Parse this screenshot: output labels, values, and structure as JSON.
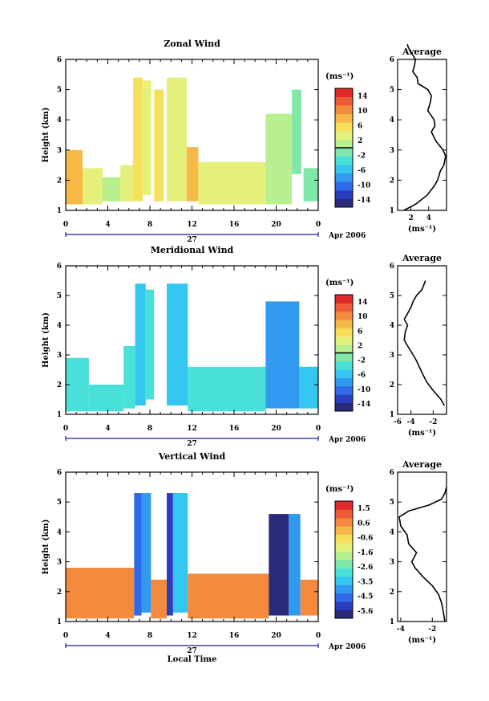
{
  "figure": {
    "xlabel": "Local Time",
    "ylabel": "Height (km)",
    "date_label": "27",
    "month_label": "Apr 2006",
    "avg_title": "Average",
    "unit_label": "(ms⁻¹)",
    "avg_xlabel": "(ms⁻¹)"
  },
  "chart_data": [
    {
      "id": "zonal",
      "type": "heatmap",
      "title": "Zonal Wind",
      "xlabel": "",
      "ylabel": "Height (km)",
      "x_ticks": [
        "0",
        "4",
        "8",
        "12",
        "16",
        "20",
        "0"
      ],
      "xlim": [
        0,
        24
      ],
      "ylim": [
        1,
        6
      ],
      "y_ticks": [
        "1",
        "2",
        "3",
        "4",
        "5",
        "6"
      ],
      "colorbar": {
        "labels": [
          "14",
          "10",
          "6",
          "2",
          "-2",
          "-6",
          "-10",
          "-14"
        ],
        "range": [
          -14,
          14
        ],
        "zero_line": 0
      },
      "data_columns": [
        {
          "t0": 0.0,
          "t1": 1.6,
          "h0": 1.2,
          "h1": 3.0,
          "value": 7
        },
        {
          "t0": 1.6,
          "t1": 3.5,
          "h0": 1.2,
          "h1": 2.4,
          "value": 3
        },
        {
          "t0": 3.5,
          "t1": 5.8,
          "h0": 1.3,
          "h1": 2.1,
          "value": 1
        },
        {
          "t0": 5.2,
          "t1": 6.4,
          "h0": 1.3,
          "h1": 2.5,
          "value": 2
        },
        {
          "t0": 6.4,
          "t1": 7.3,
          "h0": 1.3,
          "h1": 5.4,
          "value": 4
        },
        {
          "t0": 7.3,
          "t1": 8.1,
          "h0": 1.5,
          "h1": 5.3,
          "value": 3
        },
        {
          "t0": 8.4,
          "t1": 9.3,
          "h0": 1.3,
          "h1": 5.0,
          "value": 5
        },
        {
          "t0": 9.6,
          "t1": 11.5,
          "h0": 1.3,
          "h1": 5.4,
          "value": 3
        },
        {
          "t0": 11.5,
          "t1": 12.6,
          "h0": 1.3,
          "h1": 3.1,
          "value": 6
        },
        {
          "t0": 12.6,
          "t1": 19.0,
          "h0": 1.2,
          "h1": 2.6,
          "value": 3
        },
        {
          "t0": 19.0,
          "t1": 21.5,
          "h0": 1.2,
          "h1": 4.2,
          "value": 0
        },
        {
          "t0": 21.5,
          "t1": 22.4,
          "h0": 2.2,
          "h1": 5.0,
          "value": -1
        },
        {
          "t0": 22.6,
          "t1": 24.0,
          "h0": 1.3,
          "h1": 2.4,
          "value": -2
        }
      ],
      "average": {
        "xlim": [
          0.5,
          6
        ],
        "x_ticks": [
          "2",
          "4"
        ],
        "height": [
          1.0,
          1.2,
          1.5,
          1.8,
          2.0,
          2.3,
          2.5,
          2.8,
          3.0,
          3.3,
          3.6,
          3.8,
          4.0,
          4.3,
          4.6,
          4.8,
          5.0,
          5.2,
          5.4,
          5.6,
          5.8,
          6.0,
          6.2,
          6.4,
          6.5
        ],
        "value": [
          1.2,
          2.5,
          3.8,
          4.6,
          5.0,
          5.3,
          5.7,
          5.9,
          5.6,
          4.8,
          4.3,
          4.7,
          4.6,
          3.9,
          4.2,
          4.3,
          3.9,
          2.8,
          2.7,
          2.2,
          2.4,
          2.5,
          2.1,
          1.7,
          1.6
        ]
      }
    },
    {
      "id": "meridional",
      "type": "heatmap",
      "title": "Meridional Wind",
      "xlabel": "",
      "ylabel": "Height (km)",
      "x_ticks": [
        "0",
        "4",
        "8",
        "12",
        "16",
        "20",
        "0"
      ],
      "xlim": [
        0,
        24
      ],
      "ylim": [
        1,
        6
      ],
      "y_ticks": [
        "1",
        "2",
        "3",
        "4",
        "5",
        "6"
      ],
      "colorbar": {
        "labels": [
          "14",
          "10",
          "6",
          "2",
          "-2",
          "-6",
          "-10",
          "-14"
        ],
        "range": [
          -14,
          14
        ],
        "zero_line": 0
      },
      "data_columns": [
        {
          "t0": 0.0,
          "t1": 2.2,
          "h0": 1.1,
          "h1": 2.9,
          "value": -4
        },
        {
          "t0": 2.2,
          "t1": 5.5,
          "h0": 1.1,
          "h1": 2.0,
          "value": -4
        },
        {
          "t0": 5.5,
          "t1": 6.6,
          "h0": 1.2,
          "h1": 3.3,
          "value": -3
        },
        {
          "t0": 6.6,
          "t1": 7.6,
          "h0": 1.3,
          "h1": 5.4,
          "value": -6
        },
        {
          "t0": 7.6,
          "t1": 8.4,
          "h0": 1.5,
          "h1": 5.2,
          "value": -4
        },
        {
          "t0": 9.6,
          "t1": 11.6,
          "h0": 1.3,
          "h1": 5.4,
          "value": -5
        },
        {
          "t0": 11.6,
          "t1": 19.0,
          "h0": 1.1,
          "h1": 2.6,
          "value": -4
        },
        {
          "t0": 19.0,
          "t1": 22.2,
          "h0": 1.2,
          "h1": 4.8,
          "value": -8
        },
        {
          "t0": 22.2,
          "t1": 24.0,
          "h0": 1.2,
          "h1": 2.6,
          "value": -5
        }
      ],
      "average": {
        "xlim": [
          -5.2,
          -0.8
        ],
        "x_ticks": [
          "-6",
          "-4",
          "-2"
        ],
        "height": [
          1.3,
          1.5,
          1.8,
          2.1,
          2.4,
          2.8,
          3.0,
          3.3,
          3.5,
          3.8,
          4.0,
          4.2,
          4.4,
          4.6,
          4.8,
          5.0,
          5.2,
          5.5
        ],
        "value": [
          -1.0,
          -1.3,
          -2.0,
          -2.6,
          -3.0,
          -3.5,
          -3.8,
          -4.3,
          -4.6,
          -4.5,
          -4.3,
          -4.6,
          -4.3,
          -4.0,
          -3.8,
          -3.5,
          -3.0,
          -2.7
        ]
      }
    },
    {
      "id": "vertical",
      "type": "heatmap",
      "title": "Vertical Wind",
      "xlabel": "Local Time",
      "ylabel": "Height (km)",
      "x_ticks": [
        "0",
        "4",
        "8",
        "12",
        "16",
        "20",
        "0"
      ],
      "xlim": [
        0,
        24
      ],
      "ylim": [
        1,
        6
      ],
      "y_ticks": [
        "1",
        "2",
        "3",
        "4",
        "5",
        "6"
      ],
      "colorbar": {
        "labels": [
          "1.5",
          "0.6",
          "-0.6",
          "-1.6",
          "-2.6",
          "-3.5",
          "-4.5",
          "-5.6"
        ],
        "range": [
          -5.6,
          1.5
        ],
        "zero_line": null
      },
      "data_columns": [
        {
          "t0": 0.0,
          "t1": 6.5,
          "h0": 1.1,
          "h1": 2.8,
          "value": 0.3
        },
        {
          "t0": 6.5,
          "t1": 7.2,
          "h0": 1.2,
          "h1": 5.3,
          "value": -4.2
        },
        {
          "t0": 7.2,
          "t1": 8.1,
          "h0": 1.3,
          "h1": 5.3,
          "value": -3.6
        },
        {
          "t0": 8.1,
          "t1": 9.6,
          "h0": 1.1,
          "h1": 2.4,
          "value": 0.2
        },
        {
          "t0": 9.6,
          "t1": 10.2,
          "h0": 1.2,
          "h1": 5.3,
          "value": -4.8
        },
        {
          "t0": 10.2,
          "t1": 11.6,
          "h0": 1.3,
          "h1": 5.3,
          "value": -3.4
        },
        {
          "t0": 11.6,
          "t1": 19.3,
          "h0": 1.1,
          "h1": 2.6,
          "value": 0.2
        },
        {
          "t0": 19.3,
          "t1": 21.2,
          "h0": 1.2,
          "h1": 4.6,
          "value": -5.6
        },
        {
          "t0": 21.2,
          "t1": 22.3,
          "h0": 1.2,
          "h1": 4.6,
          "value": -4.0
        },
        {
          "t0": 22.3,
          "t1": 24.0,
          "h0": 1.2,
          "h1": 2.4,
          "value": 0.1
        }
      ],
      "average": {
        "xlim": [
          -4.2,
          -1.1
        ],
        "x_ticks": [
          "-4",
          "-2"
        ],
        "height": [
          1.0,
          1.3,
          1.6,
          1.9,
          2.2,
          2.5,
          2.8,
          3.0,
          3.3,
          3.6,
          3.9,
          4.2,
          4.5,
          4.7,
          4.9,
          5.1,
          5.3,
          5.5
        ],
        "value": [
          -1.2,
          -1.3,
          -1.4,
          -1.6,
          -2.0,
          -2.6,
          -3.1,
          -3.3,
          -3.0,
          -3.5,
          -3.6,
          -4.0,
          -4.1,
          -3.5,
          -2.2,
          -1.4,
          -1.2,
          -1.1
        ]
      }
    }
  ]
}
